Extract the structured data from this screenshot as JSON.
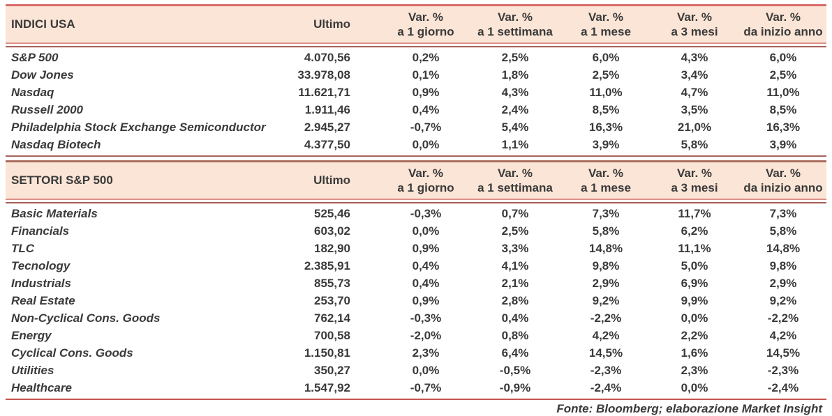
{
  "colors": {
    "header_bg": "#fbe5d6",
    "accent_line": "#d96c6a",
    "double_line_light": "#dd908a",
    "double_line_dark": "#a6605a",
    "bottom_line": "#c5544e",
    "text": "#3a3a3a"
  },
  "columns": {
    "ultimo": "Ultimo",
    "var_top": "Var. %",
    "periods": [
      "a 1 giorno",
      "a 1 settimana",
      "a 1 mese",
      "a 3 mesi",
      "da inizio anno"
    ]
  },
  "sections": [
    {
      "title": "INDICI USA",
      "rows": [
        {
          "name": "S&P 500",
          "ultimo": "4.070,56",
          "vars": [
            "0,2%",
            "2,5%",
            "6,0%",
            "4,3%",
            "6,0%"
          ]
        },
        {
          "name": "Dow Jones",
          "ultimo": "33.978,08",
          "vars": [
            "0,1%",
            "1,8%",
            "2,5%",
            "3,4%",
            "2,5%"
          ]
        },
        {
          "name": "Nasdaq",
          "ultimo": "11.621,71",
          "vars": [
            "0,9%",
            "4,3%",
            "11,0%",
            "4,7%",
            "11,0%"
          ]
        },
        {
          "name": "Russell 2000",
          "ultimo": "1.911,46",
          "vars": [
            "0,4%",
            "2,4%",
            "8,5%",
            "3,5%",
            "8,5%"
          ]
        },
        {
          "name": "Philadelphia Stock Exchange Semiconductor",
          "ultimo": "2.945,27",
          "vars": [
            "-0,7%",
            "5,4%",
            "16,3%",
            "21,0%",
            "16,3%"
          ]
        },
        {
          "name": "Nasdaq Biotech",
          "ultimo": "4.377,50",
          "vars": [
            "0,0%",
            "1,1%",
            "3,9%",
            "5,8%",
            "3,9%"
          ]
        }
      ]
    },
    {
      "title": "SETTORI S&P 500",
      "rows": [
        {
          "name": "Basic Materials",
          "ultimo": "525,46",
          "vars": [
            "-0,3%",
            "0,7%",
            "7,3%",
            "11,7%",
            "7,3%"
          ]
        },
        {
          "name": "Financials",
          "ultimo": "603,02",
          "vars": [
            "0,0%",
            "2,5%",
            "5,8%",
            "6,2%",
            "5,8%"
          ]
        },
        {
          "name": "TLC",
          "ultimo": "182,90",
          "vars": [
            "0,9%",
            "3,3%",
            "14,8%",
            "11,1%",
            "14,8%"
          ]
        },
        {
          "name": "Tecnology",
          "ultimo": "2.385,91",
          "vars": [
            "0,4%",
            "4,1%",
            "9,8%",
            "5,0%",
            "9,8%"
          ]
        },
        {
          "name": "Industrials",
          "ultimo": "855,73",
          "vars": [
            "0,4%",
            "2,1%",
            "2,9%",
            "6,9%",
            "2,9%"
          ]
        },
        {
          "name": "Real Estate",
          "ultimo": "253,70",
          "vars": [
            "0,9%",
            "2,8%",
            "9,2%",
            "9,9%",
            "9,2%"
          ]
        },
        {
          "name": "Non-Cyclical Cons. Goods",
          "ultimo": "762,14",
          "vars": [
            "-0,3%",
            "0,4%",
            "-2,2%",
            "0,0%",
            "-2,2%"
          ]
        },
        {
          "name": "Energy",
          "ultimo": "700,58",
          "vars": [
            "-2,0%",
            "0,8%",
            "4,2%",
            "2,2%",
            "4,2%"
          ]
        },
        {
          "name": "Cyclical Cons. Goods",
          "ultimo": "1.150,81",
          "vars": [
            "2,3%",
            "6,4%",
            "14,5%",
            "1,6%",
            "14,5%"
          ]
        },
        {
          "name": "Utilities",
          "ultimo": "350,27",
          "vars": [
            "0,0%",
            "-0,5%",
            "-2,3%",
            "2,3%",
            "-2,3%"
          ]
        },
        {
          "name": "Healthcare",
          "ultimo": "1.547,92",
          "vars": [
            "-0,7%",
            "-0,9%",
            "-2,4%",
            "0,0%",
            "-2,4%"
          ]
        }
      ]
    }
  ],
  "footer": "Fonte: Bloomberg; elaborazione Market Insight"
}
